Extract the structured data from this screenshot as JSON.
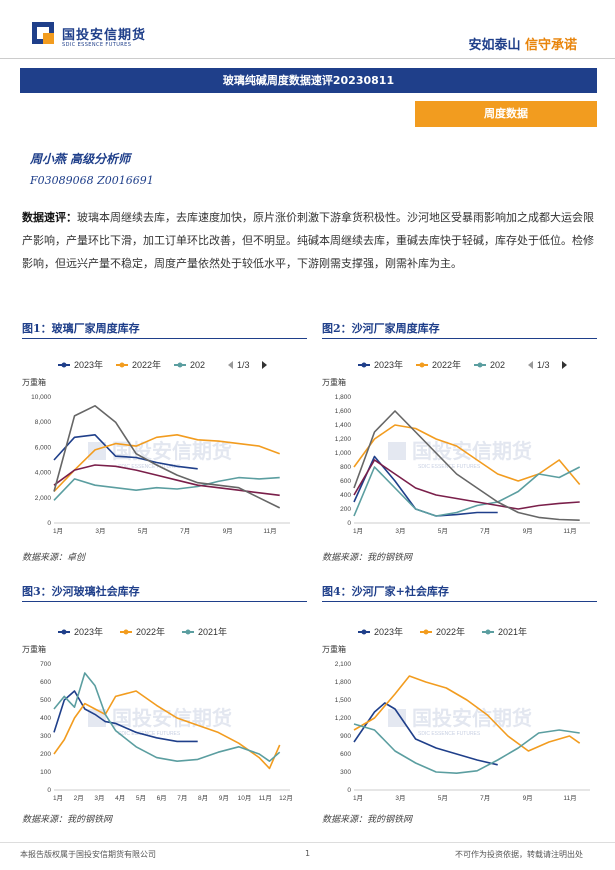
{
  "header": {
    "logo_cn": "国投安信期货",
    "logo_en": "SDIC ESSENCE FUTURES",
    "slogan_a": "安如泰山",
    "slogan_b": "信守承诺"
  },
  "title": "玻璃纯碱周度数据速评20230811",
  "tag": "周度数据",
  "author": "周小燕  高级分析师",
  "cert": "F03089068  Z0016691",
  "summary": {
    "label": "数据速评：",
    "text": "玻璃本周继续去库，去库速度加快，原片涨价刺激下游拿货积极性。沙河地区受暴雨影响加之成都大运会限产影响，产量环比下滑，加工订单环比改善，但不明显。纯碱本周继续去库，重碱去库快于轻碱，库存处于低位。检修影响，但远兴产量不稳定，周度产量依然处于较低水平，下游刚需支撑强，刚需补库为主。"
  },
  "figures": [
    {
      "title": "图1：玻璃厂家周度库存",
      "source": "数据来源：卓创"
    },
    {
      "title": "图2：沙河厂家周度库存",
      "source": "数据来源：我的钢铁网"
    },
    {
      "title": "图3：沙河玻璃社会库存",
      "source": "数据来源：我的钢铁网"
    },
    {
      "title": "图4：沙河厂家+社会库存",
      "source": "数据来源：我的钢铁网"
    }
  ],
  "watermark": "国投安信期货",
  "watermark_en": "SDIC ESSENCE FUTURES",
  "footer": {
    "left": "本报告版权属于国投安信期货有限公司",
    "page": "1",
    "right": "不可作为投资依据，转载请注明出处"
  },
  "colors": {
    "brand": "#1f3f8a",
    "accent": "#f29c1f",
    "s2023": "#1f3f8a",
    "s2022": "#f29c1f",
    "s2021": "#5b9ea0",
    "s2020": "#7a1f4a",
    "s2019": "#666666"
  },
  "chart_data": [
    {
      "type": "line",
      "unit": "万重箱",
      "legend": [
        "2023年",
        "2022年",
        "202"
      ],
      "pager": "1/3",
      "x_ticks": [
        "1月",
        "3月",
        "5月",
        "7月",
        "9月",
        "11月"
      ],
      "ylim": [
        0,
        10000
      ],
      "y_ticks": [
        "0",
        "2,000",
        "4,000",
        "6,000",
        "8,000",
        "10,000"
      ],
      "series": [
        {
          "name": "2023年",
          "color": "#1f3f8a",
          "values": [
            [
              0,
              5000
            ],
            [
              1,
              6800
            ],
            [
              2,
              7000
            ],
            [
              3,
              5300
            ],
            [
              4,
              5200
            ],
            [
              5,
              4800
            ],
            [
              6,
              4500
            ],
            [
              7,
              4300
            ]
          ]
        },
        {
          "name": "2022年",
          "color": "#f29c1f",
          "values": [
            [
              0,
              2500
            ],
            [
              1,
              4200
            ],
            [
              2,
              5800
            ],
            [
              3,
              6300
            ],
            [
              4,
              6100
            ],
            [
              5,
              6800
            ],
            [
              6,
              7000
            ],
            [
              7,
              6600
            ],
            [
              8,
              6500
            ],
            [
              9,
              6300
            ],
            [
              10,
              6100
            ],
            [
              11,
              5500
            ]
          ]
        },
        {
          "name": "202",
          "color": "#5b9ea0",
          "values": [
            [
              0,
              1800
            ],
            [
              1,
              3500
            ],
            [
              2,
              3000
            ],
            [
              3,
              2800
            ],
            [
              4,
              2600
            ],
            [
              5,
              2800
            ],
            [
              6,
              2700
            ],
            [
              7,
              2900
            ],
            [
              8,
              3300
            ],
            [
              9,
              3600
            ],
            [
              10,
              3500
            ],
            [
              11,
              3600
            ]
          ]
        },
        {
          "color": "#7a1f4a",
          "values": [
            [
              0,
              3000
            ],
            [
              1,
              4200
            ],
            [
              2,
              4600
            ],
            [
              3,
              4500
            ],
            [
              4,
              4200
            ],
            [
              5,
              3800
            ],
            [
              6,
              3400
            ],
            [
              7,
              3000
            ],
            [
              8,
              2800
            ],
            [
              9,
              2600
            ],
            [
              10,
              2400
            ],
            [
              11,
              2200
            ]
          ]
        },
        {
          "color": "#666666",
          "values": [
            [
              0,
              2500
            ],
            [
              1,
              8500
            ],
            [
              2,
              9300
            ],
            [
              3,
              8000
            ],
            [
              4,
              5500
            ],
            [
              5,
              4600
            ],
            [
              6,
              3800
            ],
            [
              7,
              3200
            ],
            [
              8,
              3000
            ],
            [
              9,
              2800
            ],
            [
              10,
              2000
            ],
            [
              11,
              1200
            ]
          ]
        }
      ]
    },
    {
      "type": "line",
      "unit": "万重箱",
      "legend": [
        "2023年",
        "2022年",
        "202"
      ],
      "pager": "1/3",
      "x_ticks": [
        "1月",
        "3月",
        "5月",
        "7月",
        "9月",
        "11月"
      ],
      "ylim": [
        0,
        1800
      ],
      "y_ticks": [
        "0",
        "200",
        "400",
        "600",
        "800",
        "1,000",
        "1,200",
        "1,400",
        "1,600",
        "1,800"
      ],
      "series": [
        {
          "name": "2023年",
          "color": "#1f3f8a",
          "values": [
            [
              0,
              300
            ],
            [
              1,
              950
            ],
            [
              2,
              600
            ],
            [
              3,
              200
            ],
            [
              4,
              100
            ],
            [
              5,
              120
            ],
            [
              6,
              150
            ],
            [
              7,
              150
            ]
          ]
        },
        {
          "name": "2022年",
          "color": "#f29c1f",
          "values": [
            [
              0,
              800
            ],
            [
              1,
              1200
            ],
            [
              2,
              1400
            ],
            [
              3,
              1350
            ],
            [
              4,
              1200
            ],
            [
              5,
              1100
            ],
            [
              6,
              900
            ],
            [
              7,
              700
            ],
            [
              8,
              600
            ],
            [
              9,
              700
            ],
            [
              10,
              900
            ],
            [
              11,
              550
            ]
          ]
        },
        {
          "name": "202",
          "color": "#5b9ea0",
          "values": [
            [
              0,
              100
            ],
            [
              1,
              800
            ],
            [
              2,
              500
            ],
            [
              3,
              200
            ],
            [
              4,
              100
            ],
            [
              5,
              150
            ],
            [
              6,
              250
            ],
            [
              7,
              300
            ],
            [
              8,
              450
            ],
            [
              9,
              700
            ],
            [
              10,
              650
            ],
            [
              11,
              800
            ]
          ]
        },
        {
          "color": "#7a1f4a",
          "values": [
            [
              0,
              400
            ],
            [
              1,
              900
            ],
            [
              2,
              700
            ],
            [
              3,
              500
            ],
            [
              4,
              400
            ],
            [
              5,
              350
            ],
            [
              6,
              300
            ],
            [
              7,
              250
            ],
            [
              8,
              200
            ],
            [
              9,
              250
            ],
            [
              10,
              280
            ],
            [
              11,
              300
            ]
          ]
        },
        {
          "color": "#666666",
          "values": [
            [
              0,
              500
            ],
            [
              1,
              1300
            ],
            [
              2,
              1600
            ],
            [
              3,
              1300
            ],
            [
              4,
              1000
            ],
            [
              5,
              700
            ],
            [
              6,
              500
            ],
            [
              7,
              300
            ],
            [
              8,
              150
            ],
            [
              9,
              80
            ],
            [
              10,
              50
            ],
            [
              11,
              40
            ]
          ]
        }
      ]
    },
    {
      "type": "line",
      "unit": "万重箱",
      "legend": [
        "2023年",
        "2022年",
        "2021年"
      ],
      "x_ticks": [
        "1月",
        "2月",
        "3月",
        "4月",
        "5月",
        "6月",
        "7月",
        "8月",
        "9月",
        "10月",
        "11月",
        "12月"
      ],
      "ylim": [
        0,
        700
      ],
      "y_ticks": [
        "0",
        "100",
        "200",
        "300",
        "400",
        "500",
        "600",
        "700"
      ],
      "series": [
        {
          "name": "2023年",
          "color": "#1f3f8a",
          "values": [
            [
              0,
              320
            ],
            [
              0.5,
              500
            ],
            [
              1,
              550
            ],
            [
              1.5,
              450
            ],
            [
              2,
              420
            ],
            [
              2.5,
              380
            ],
            [
              3,
              370
            ],
            [
              4,
              320
            ],
            [
              5,
              290
            ],
            [
              6,
              270
            ],
            [
              7,
              270
            ]
          ]
        },
        {
          "name": "2022年",
          "color": "#f29c1f",
          "values": [
            [
              0,
              200
            ],
            [
              0.5,
              280
            ],
            [
              1,
              400
            ],
            [
              1.5,
              480
            ],
            [
              2,
              450
            ],
            [
              2.5,
              420
            ],
            [
              3,
              520
            ],
            [
              4,
              550
            ],
            [
              5,
              470
            ],
            [
              6,
              400
            ],
            [
              7,
              360
            ],
            [
              8,
              320
            ],
            [
              9,
              260
            ],
            [
              10,
              180
            ],
            [
              10.5,
              120
            ],
            [
              11,
              250
            ]
          ]
        },
        {
          "name": "2021年",
          "color": "#5b9ea0",
          "values": [
            [
              0,
              450
            ],
            [
              0.5,
              520
            ],
            [
              1,
              460
            ],
            [
              1.5,
              650
            ],
            [
              2,
              580
            ],
            [
              2.5,
              420
            ],
            [
              3,
              330
            ],
            [
              4,
              240
            ],
            [
              5,
              180
            ],
            [
              6,
              160
            ],
            [
              7,
              170
            ],
            [
              8,
              210
            ],
            [
              9,
              240
            ],
            [
              10,
              200
            ],
            [
              10.5,
              160
            ],
            [
              11,
              210
            ]
          ]
        }
      ]
    },
    {
      "type": "line",
      "unit": "万重箱",
      "legend": [
        "2023年",
        "2022年",
        "2021年"
      ],
      "x_ticks": [
        "1月",
        "3月",
        "5月",
        "7月",
        "9月",
        "11月"
      ],
      "ylim": [
        0,
        2100
      ],
      "y_ticks": [
        "0",
        "300",
        "600",
        "900",
        "1,200",
        "1,500",
        "1,800",
        "2,100"
      ],
      "series": [
        {
          "name": "2023年",
          "color": "#1f3f8a",
          "values": [
            [
              0,
              800
            ],
            [
              1,
              1300
            ],
            [
              1.5,
              1450
            ],
            [
              2,
              1350
            ],
            [
              3,
              850
            ],
            [
              4,
              700
            ],
            [
              5,
              600
            ],
            [
              6,
              500
            ],
            [
              7,
              420
            ]
          ]
        },
        {
          "name": "2022年",
          "color": "#f29c1f",
          "values": [
            [
              0,
              1000
            ],
            [
              1,
              1200
            ],
            [
              2,
              1600
            ],
            [
              2.7,
              1900
            ],
            [
              3.5,
              1800
            ],
            [
              4.5,
              1700
            ],
            [
              5.5,
              1500
            ],
            [
              6.5,
              1250
            ],
            [
              7.5,
              900
            ],
            [
              8.5,
              650
            ],
            [
              9.5,
              800
            ],
            [
              10.5,
              900
            ],
            [
              11,
              780
            ]
          ]
        },
        {
          "name": "2021年",
          "color": "#5b9ea0",
          "values": [
            [
              0,
              1100
            ],
            [
              1,
              1000
            ],
            [
              2,
              650
            ],
            [
              3,
              450
            ],
            [
              4,
              300
            ],
            [
              5,
              280
            ],
            [
              6,
              320
            ],
            [
              7,
              500
            ],
            [
              8,
              700
            ],
            [
              9,
              950
            ],
            [
              10,
              1000
            ],
            [
              11,
              950
            ]
          ]
        }
      ]
    }
  ]
}
